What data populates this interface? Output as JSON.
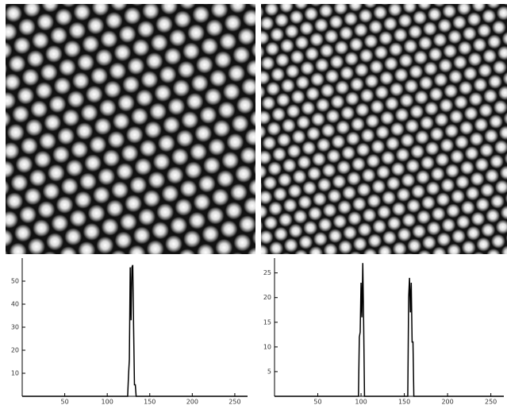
{
  "chart_data": [
    {
      "type": "line",
      "color": "#000000",
      "x": [
        0,
        124,
        125,
        126,
        127,
        128,
        129,
        130,
        131,
        132,
        133,
        134,
        135,
        265
      ],
      "values": [
        0,
        0,
        9,
        16,
        56,
        33,
        56,
        57,
        30,
        5,
        5,
        0,
        0,
        0
      ],
      "xlim": [
        0,
        265
      ],
      "ylim": [
        0,
        60
      ],
      "xticks": [
        50,
        100,
        150,
        200,
        250
      ],
      "yticks": [
        10,
        20,
        30,
        40,
        50
      ]
    },
    {
      "type": "line",
      "color": "#000000",
      "x": [
        0,
        97,
        98,
        99,
        100,
        101,
        102,
        103,
        104,
        154,
        155,
        156,
        157,
        158,
        159,
        160,
        161,
        265
      ],
      "values": [
        0,
        0,
        12,
        13,
        23,
        16,
        27,
        15,
        0,
        0,
        20,
        24,
        17,
        23,
        11,
        11,
        0,
        0
      ],
      "xlim": [
        0,
        265
      ],
      "ylim": [
        0,
        28
      ],
      "xticks": [
        50,
        100,
        150,
        200,
        250
      ],
      "yticks": [
        5,
        10,
        15,
        20,
        25
      ]
    }
  ]
}
